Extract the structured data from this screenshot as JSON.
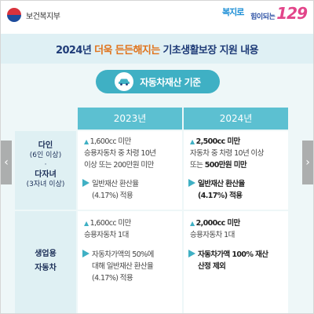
{
  "header": {
    "ministry": "보건복지부",
    "logo_left": "복지로",
    "logo_right_small": "힘이되는",
    "logo_right_num": "129"
  },
  "title": {
    "pre": "2024년 ",
    "highlight": "더욱 든든해지는",
    "post": " 기초생활보장 지원 내용"
  },
  "section": {
    "label": "자동차재산 기준",
    "icon": "car-icon"
  },
  "table": {
    "col_2023": "2023년",
    "col_2024": "2024년",
    "rows": [
      {
        "head_a": "다인",
        "head_a_sub": "(6인 이상)",
        "head_sep": "·",
        "head_b": "다자녀",
        "head_b_sub": "(3자녀 이상)",
        "c2023": {
          "l1": "1,600cc 미만",
          "l2": "승용자동차 중 차령 10년",
          "l3": "이상 또는 200만원 미만",
          "a1": "일반재산 환산율",
          "a2": "(4.17%) 적용"
        },
        "c2024": {
          "l1": "2,500cc 미만",
          "l2": "자동차 중 차령 10년 이상",
          "l3a": "또는 ",
          "l3b": "500만원 미만",
          "a1": "일반재산 환산율",
          "a2": "(4.17%) 적용"
        }
      },
      {
        "head_a": "생업용",
        "head_b": "자동차",
        "c2023": {
          "l1": "1,600cc 미만",
          "l2": "승용자동차 1대",
          "a1": "자동차가액의 50%에",
          "a2": "대해 일반재산 환산율",
          "a3": "(4.17%) 적용"
        },
        "c2024": {
          "l1": "2,000cc 미만",
          "l2": "승용자동차 1대",
          "a1": "자동차가액 100% 재산",
          "a2": "산정 제외"
        }
      }
    ]
  },
  "nav": {
    "prev": "‹",
    "next": "›"
  },
  "colors": {
    "accent": "#3fb0c4",
    "title": "#1f3c78",
    "highlight": "#e0731b",
    "pink": "#e2458a"
  }
}
